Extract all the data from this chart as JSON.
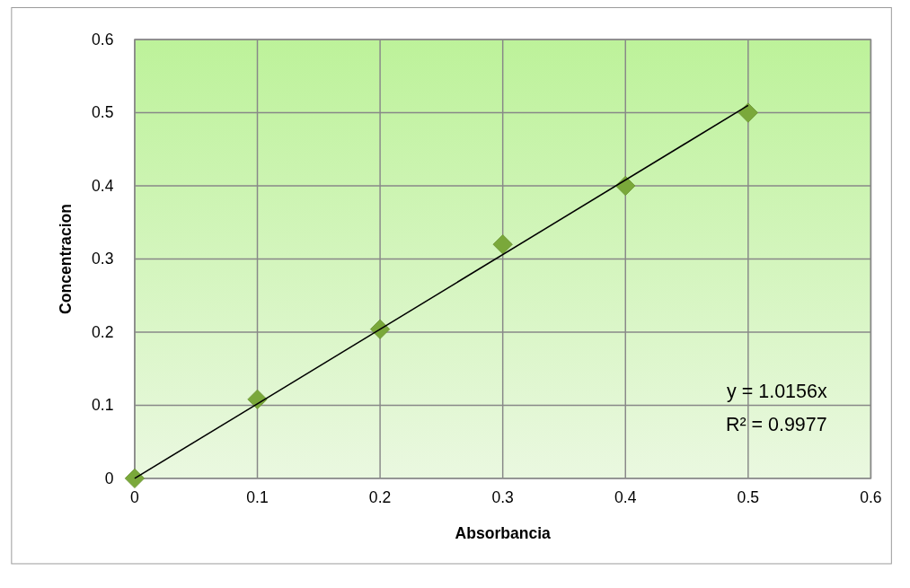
{
  "chart_data": {
    "type": "scatter",
    "xlabel": "Absorbancia",
    "ylabel": "Concentracion",
    "x": [
      0,
      0.1,
      0.2,
      0.3,
      0.4,
      0.5
    ],
    "series": [
      {
        "color": "#7aa83a",
        "marker": "diamond",
        "values": [
          0,
          0.108,
          0.204,
          0.32,
          0.4,
          0.5
        ]
      },
      {
        "type": "line",
        "color": "#000000",
        "marker": "none",
        "x": [
          0,
          0.5
        ],
        "values": [
          0,
          0.51
        ]
      }
    ],
    "xlim": [
      0,
      0.6
    ],
    "xticks": [
      0,
      0.1,
      0.2,
      0.3,
      0.4,
      0.5,
      0.6
    ],
    "ylim": [
      0,
      0.6
    ],
    "yticks": [
      0,
      0.1,
      0.2,
      0.3,
      0.4,
      0.5,
      0.6
    ],
    "grid": true,
    "annotations": [
      "y = 1.0156x",
      "R² = 0.9977"
    ]
  }
}
